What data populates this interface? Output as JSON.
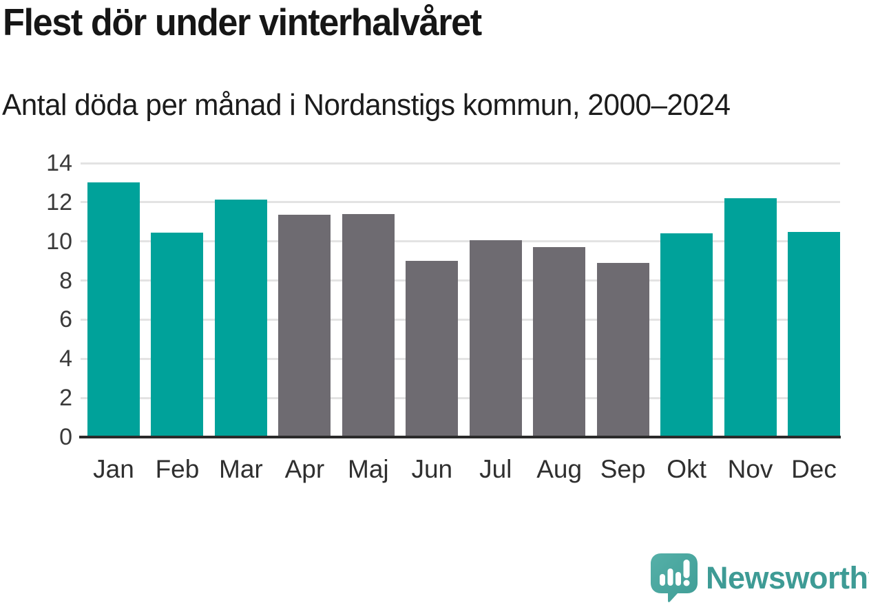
{
  "header": {
    "title": "Flest dör under vinterhalvåret",
    "subtitle": "Antal döda per månad i Nordanstigs kommun, 2000–2024"
  },
  "chart_data": {
    "type": "bar",
    "title": "Flest dör under vinterhalvåret",
    "subtitle": "Antal döda per månad i Nordanstigs kommun, 2000–2024",
    "categories": [
      "Jan",
      "Feb",
      "Mar",
      "Apr",
      "Maj",
      "Jun",
      "Jul",
      "Aug",
      "Sep",
      "Okt",
      "Nov",
      "Dec"
    ],
    "values": [
      13.0,
      10.45,
      12.15,
      11.35,
      11.4,
      9.0,
      10.05,
      9.7,
      8.9,
      10.4,
      12.2,
      10.5
    ],
    "bar_colors": [
      "teal",
      "teal",
      "teal",
      "gray",
      "gray",
      "gray",
      "gray",
      "gray",
      "gray",
      "teal",
      "teal",
      "teal"
    ],
    "palette": {
      "teal": "#00a29a",
      "gray": "#6e6b71"
    },
    "xlabel": "",
    "ylabel": "",
    "ylim": [
      0,
      14
    ],
    "yticks": [
      0,
      2,
      4,
      6,
      8,
      10,
      12,
      14
    ],
    "grid": "horizontal",
    "legend": "none",
    "gridline_color": "#e3e3e3",
    "axis_color": "#2b2b2b"
  },
  "footer": {
    "brand": "Newsworthy",
    "logo_icon": "newsworthy-speech-bubble-chart-icon",
    "brand_color": "#3e9b95",
    "bubble_color": "#4ba8a0"
  }
}
